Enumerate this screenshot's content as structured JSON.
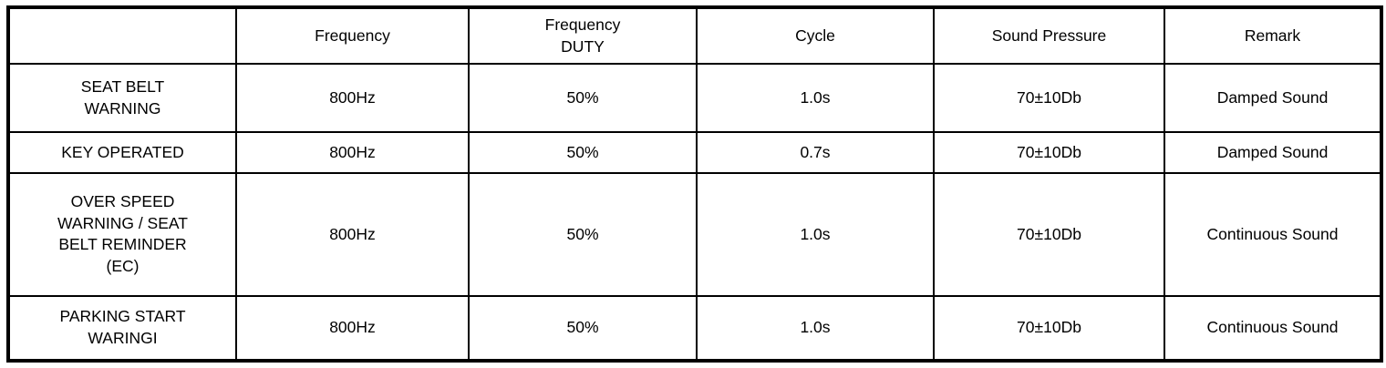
{
  "table": {
    "headers": {
      "blank": "",
      "frequency": "Frequency",
      "frequency_duty": "Frequency\nDUTY",
      "cycle": "Cycle",
      "sound_pressure": "Sound Pressure",
      "remark": "Remark"
    },
    "rows": [
      {
        "label": "SEAT BELT\nWARNING",
        "frequency": "800Hz",
        "duty": "50%",
        "cycle": "1.0s",
        "sound_pressure": "70±10Db",
        "remark": "Damped Sound"
      },
      {
        "label": "KEY OPERATED",
        "frequency": "800Hz",
        "duty": "50%",
        "cycle": "0.7s",
        "sound_pressure": "70±10Db",
        "remark": "Damped Sound"
      },
      {
        "label": "OVER SPEED\nWARNING / SEAT\nBELT REMINDER\n(EC)",
        "frequency": "800Hz",
        "duty": "50%",
        "cycle": "1.0s",
        "sound_pressure": "70±10Db",
        "remark": "Continuous Sound"
      },
      {
        "label": "PARKING START\nWARINGI",
        "frequency": "800Hz",
        "duty": "50%",
        "cycle": "1.0s",
        "sound_pressure": "70±10Db",
        "remark": "Continuous Sound"
      }
    ]
  }
}
